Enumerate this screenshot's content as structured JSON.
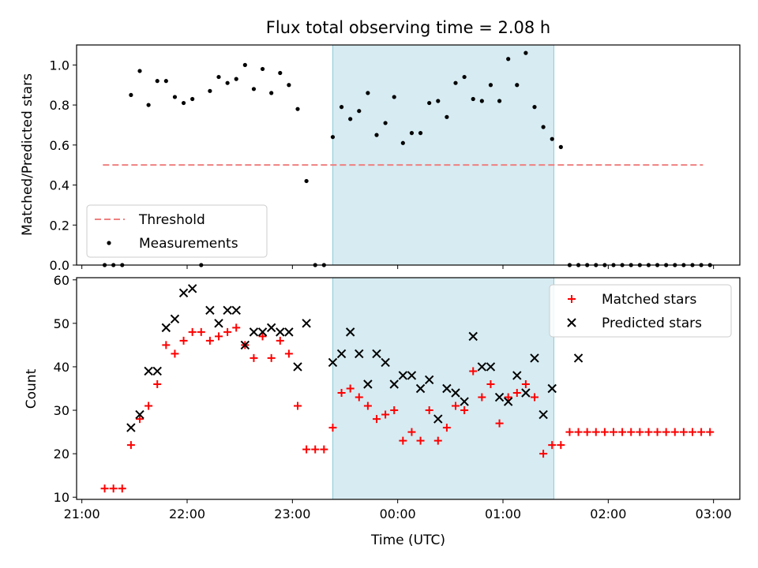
{
  "chart_data": [
    {
      "type": "scatter",
      "title": "Flux total observing time = 2.08 h",
      "xlabel": "",
      "ylabel": "Matched/Predicted stars",
      "xlim": [
        "20:57",
        "03:15"
      ],
      "ylim": [
        0.0,
        1.1
      ],
      "yticks": [
        0.0,
        0.2,
        0.4,
        0.6,
        0.8,
        1.0
      ],
      "ytick_labels": [
        "0.0",
        "0.2",
        "0.4",
        "0.6",
        "0.8",
        "1.0"
      ],
      "highlight_span": [
        "23:23",
        "01:29"
      ],
      "threshold": {
        "name": "Threshold",
        "value": 0.5,
        "x_start": "21:12",
        "x_end": "02:54",
        "color": "#f08080"
      },
      "series": [
        {
          "name": "Measurements",
          "color": "#000000",
          "x": [
            "21:13",
            "21:18",
            "21:23",
            "21:28",
            "21:33",
            "21:38",
            "21:43",
            "21:48",
            "21:53",
            "21:58",
            "22:03",
            "22:08",
            "22:13",
            "22:18",
            "22:23",
            "22:28",
            "22:33",
            "22:38",
            "22:43",
            "22:48",
            "22:53",
            "22:58",
            "23:03",
            "23:08",
            "23:13",
            "23:18",
            "23:23",
            "23:28",
            "23:33",
            "23:38",
            "23:43",
            "23:48",
            "23:53",
            "23:58",
            "00:03",
            "00:08",
            "00:13",
            "00:18",
            "00:23",
            "00:28",
            "00:33",
            "00:38",
            "00:43",
            "00:48",
            "00:53",
            "00:58",
            "01:03",
            "01:08",
            "01:13",
            "01:18",
            "01:23",
            "01:28",
            "01:33",
            "01:38",
            "01:43",
            "01:48",
            "01:53",
            "01:58",
            "02:03",
            "02:08",
            "02:13",
            "02:18",
            "02:23",
            "02:28",
            "02:33",
            "02:38",
            "02:43",
            "02:48",
            "02:53",
            "02:58"
          ],
          "y": [
            0,
            0,
            0,
            0.85,
            0.97,
            0.8,
            0.92,
            0.92,
            0.84,
            0.81,
            0.83,
            0,
            0.87,
            0.94,
            0.91,
            0.93,
            1.0,
            0.88,
            0.98,
            0.86,
            0.96,
            0.9,
            0.78,
            0.42,
            0,
            0,
            0.64,
            0.79,
            0.73,
            0.77,
            0.86,
            0.65,
            0.71,
            0.84,
            0.61,
            0.66,
            0.66,
            0.81,
            0.82,
            0.74,
            0.91,
            0.94,
            0.83,
            0.82,
            0.9,
            0.82,
            1.03,
            0.9,
            1.06,
            0.79,
            0.69,
            0.63,
            0.59,
            0,
            0,
            0,
            0,
            0,
            0,
            0,
            0,
            0,
            0,
            0,
            0,
            0,
            0,
            0,
            0,
            0
          ]
        }
      ],
      "legend": {
        "position": "lower-left",
        "entries": [
          "Threshold",
          "Measurements"
        ]
      }
    },
    {
      "type": "scatter",
      "xlabel": "Time (UTC)",
      "ylabel": "Count",
      "xlim": [
        "20:57",
        "03:15"
      ],
      "ylim": [
        9.5,
        60.5
      ],
      "yticks": [
        10,
        20,
        30,
        40,
        50,
        60
      ],
      "ytick_labels": [
        "10",
        "20",
        "30",
        "40",
        "50",
        "60"
      ],
      "xticks": [
        "21:00",
        "22:00",
        "23:00",
        "00:00",
        "01:00",
        "02:00",
        "03:00"
      ],
      "highlight_span": [
        "23:23",
        "01:29"
      ],
      "series": [
        {
          "name": "Matched stars",
          "marker": "plus",
          "color": "#ff0000",
          "x": [
            "21:13",
            "21:18",
            "21:23",
            "21:28",
            "21:33",
            "21:38",
            "21:43",
            "21:48",
            "21:53",
            "21:58",
            "22:03",
            "22:08",
            "22:13",
            "22:18",
            "22:23",
            "22:28",
            "22:33",
            "22:38",
            "22:43",
            "22:48",
            "22:53",
            "22:58",
            "23:03",
            "23:08",
            "23:13",
            "23:18",
            "23:23",
            "23:28",
            "23:33",
            "23:38",
            "23:43",
            "23:48",
            "23:53",
            "23:58",
            "00:03",
            "00:08",
            "00:13",
            "00:18",
            "00:23",
            "00:28",
            "00:33",
            "00:38",
            "00:43",
            "00:48",
            "00:53",
            "00:58",
            "01:03",
            "01:08",
            "01:13",
            "01:18",
            "01:23",
            "01:28",
            "01:33",
            "01:38",
            "01:43",
            "01:48",
            "01:53",
            "01:58",
            "02:03",
            "02:08",
            "02:13",
            "02:18",
            "02:23",
            "02:28",
            "02:33",
            "02:38",
            "02:43",
            "02:48",
            "02:53",
            "02:58"
          ],
          "y": [
            12,
            12,
            12,
            22,
            28,
            31,
            36,
            45,
            43,
            46,
            48,
            48,
            46,
            47,
            48,
            49,
            45,
            42,
            47,
            42,
            46,
            43,
            31,
            21,
            21,
            21,
            26,
            34,
            35,
            33,
            31,
            28,
            29,
            30,
            23,
            25,
            23,
            30,
            23,
            26,
            31,
            30,
            39,
            33,
            36,
            27,
            33,
            34,
            36,
            33,
            20,
            22,
            22,
            25,
            25,
            25,
            25,
            25,
            25,
            25,
            25,
            25,
            25,
            25,
            25,
            25,
            25,
            25,
            25,
            25
          ]
        },
        {
          "name": "Predicted stars",
          "marker": "x",
          "color": "#000000",
          "x": [
            "21:28",
            "21:33",
            "21:38",
            "21:43",
            "21:48",
            "21:53",
            "21:58",
            "22:03",
            "22:13",
            "22:18",
            "22:23",
            "22:28",
            "22:33",
            "22:38",
            "22:43",
            "22:48",
            "22:53",
            "22:58",
            "23:03",
            "23:08",
            "23:23",
            "23:28",
            "23:33",
            "23:38",
            "23:43",
            "23:48",
            "23:53",
            "23:58",
            "00:03",
            "00:08",
            "00:13",
            "00:18",
            "00:23",
            "00:28",
            "00:33",
            "00:38",
            "00:43",
            "00:48",
            "00:53",
            "00:58",
            "01:03",
            "01:08",
            "01:13",
            "01:18",
            "01:23",
            "01:28",
            "01:43"
          ],
          "y": [
            26,
            29,
            39,
            39,
            49,
            51,
            57,
            58,
            53,
            50,
            53,
            53,
            45,
            48,
            48,
            49,
            48,
            48,
            40,
            50,
            41,
            43,
            48,
            43,
            36,
            43,
            41,
            36,
            38,
            38,
            35,
            37,
            28,
            35,
            34,
            32,
            47,
            40,
            40,
            33,
            32,
            38,
            34,
            42,
            29,
            35,
            42
          ]
        }
      ],
      "legend": {
        "position": "upper-right",
        "entries": [
          "Matched stars",
          "Predicted stars"
        ]
      }
    }
  ]
}
